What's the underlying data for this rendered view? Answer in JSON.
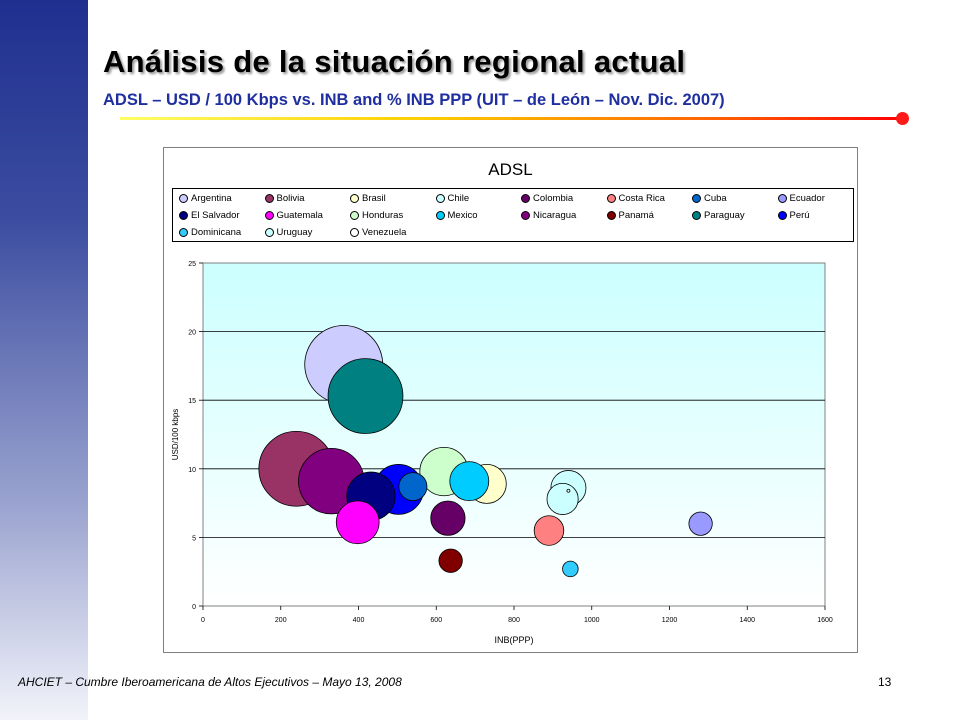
{
  "slide": {
    "title": "Análisis de la situación regional actual",
    "subtitle": "ADSL – USD / 100 Kbps vs. INB and % INB PPP (UIT – de León – Nov. Dic. 2007)",
    "footer": "AHCIET – Cumbre Iberoamericana de Altos Ejecutivos – Mayo 13, 2008",
    "page_number": "13"
  },
  "chart_data": {
    "type": "scatter",
    "title": "ADSL",
    "xlabel": "INB(PPP)",
    "ylabel": "USD/100 kbps",
    "xlim": [
      0,
      1600
    ],
    "ylim": [
      0,
      25
    ],
    "x_ticks": [
      "0",
      "200",
      "400",
      "600",
      "800",
      "1000",
      "1200",
      "1400",
      "1600"
    ],
    "y_ticks": [
      "0",
      "5",
      "10",
      "15",
      "20",
      "25"
    ],
    "grid": "horizontal",
    "legend_position": "top",
    "bubble_size_legend": false,
    "series": [
      {
        "name": "Argentina",
        "color": "#ccccff",
        "x": 362,
        "y": 17.6,
        "size": 1.0
      },
      {
        "name": "Bolivia",
        "color": "#993366",
        "x": 240,
        "y": 10.0,
        "size": 0.96
      },
      {
        "name": "Brasil",
        "color": "#ffffcc",
        "x": 730,
        "y": 8.9,
        "size": 0.5
      },
      {
        "name": "Chile",
        "color": "#ccffff",
        "x": 940,
        "y": 8.6,
        "size": 0.45
      },
      {
        "name": "Colombia",
        "color": "#660066",
        "x": 630,
        "y": 6.4,
        "size": 0.44
      },
      {
        "name": "Costa Rica",
        "color": "#ff8080",
        "x": 890,
        "y": 5.5,
        "size": 0.38
      },
      {
        "name": "Cuba",
        "color": "#0066cc",
        "x": 540,
        "y": 8.7,
        "size": 0.36
      },
      {
        "name": "Ecuador",
        "color": "#9999ff",
        "x": 1280,
        "y": 6.0,
        "size": 0.3
      },
      {
        "name": "El Salvador",
        "color": "#000080",
        "x": 432,
        "y": 8.0,
        "size": 0.62
      },
      {
        "name": "Guatemala",
        "color": "#ff00ff",
        "x": 398,
        "y": 6.1,
        "size": 0.55
      },
      {
        "name": "Honduras",
        "color": "#ccffcc",
        "x": 620,
        "y": 9.8,
        "size": 0.62
      },
      {
        "name": "Mexico",
        "color": "#00ccff",
        "x": 685,
        "y": 9.1,
        "size": 0.5
      },
      {
        "name": "Nicaragua",
        "color": "#800080",
        "x": 330,
        "y": 9.1,
        "size": 0.84
      },
      {
        "name": "Panamá",
        "color": "#800000",
        "x": 637,
        "y": 3.3,
        "size": 0.3
      },
      {
        "name": "Paraguay",
        "color": "#008080",
        "x": 418,
        "y": 15.3,
        "size": 0.96
      },
      {
        "name": "Perú",
        "color": "#0000ff",
        "x": 503,
        "y": 8.5,
        "size": 0.64
      },
      {
        "name": "Dominicana",
        "color": "#33ccff",
        "x": 945,
        "y": 2.7,
        "size": 0.2
      },
      {
        "name": "Uruguay",
        "color": "#ccffff",
        "x": 925,
        "y": 7.8,
        "size": 0.4
      },
      {
        "name": "Venezuela",
        "color": "#ffffff",
        "x": 940,
        "y": 8.4,
        "size": 0.02
      }
    ]
  }
}
